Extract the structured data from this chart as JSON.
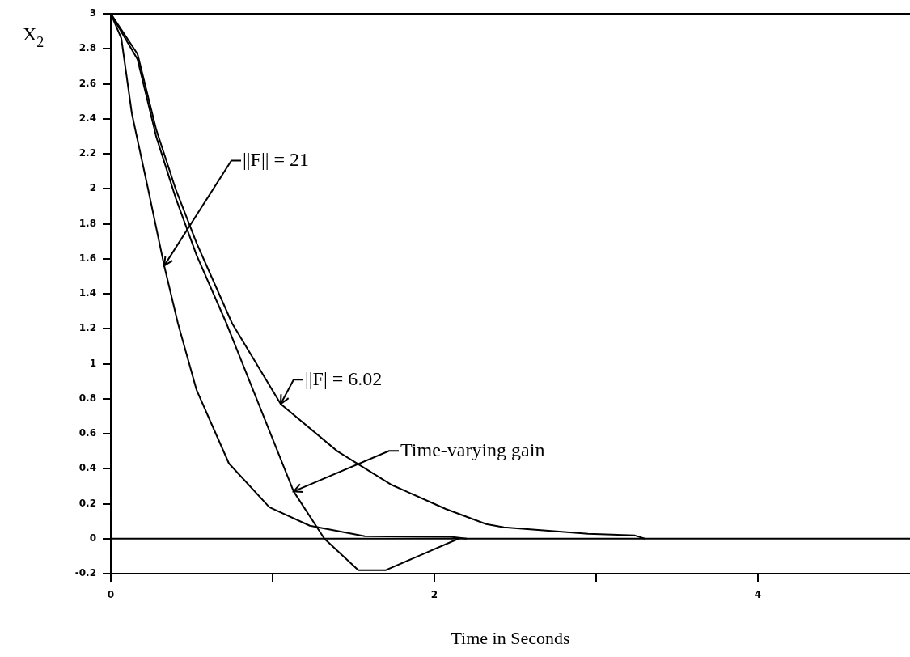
{
  "chart_data": {
    "type": "line",
    "xlabel": "Time in Seconds",
    "ylabel": "X$_{2}$",
    "xlim": [
      0,
      4.94
    ],
    "xticks": [
      0,
      {
        "value": 1,
        "label": null
      },
      2,
      {
        "value": 3,
        "label": null
      },
      4
    ],
    "ylim": [
      -0.2,
      3
    ],
    "yticks": [
      3,
      2.8,
      2.6,
      2.4,
      2.2,
      2,
      1.8,
      1.6,
      1.4,
      1.2,
      1,
      0.8,
      0.6,
      0.4,
      0.2,
      0,
      -0.2
    ],
    "grid": false,
    "legend": false,
    "marker": "none",
    "line_style": "solid",
    "ref_lines": [
      {
        "axis": "y",
        "value": 0,
        "color": "#000000"
      }
    ],
    "series": [
      {
        "color": "#000000",
        "x": [
          0,
          0.065,
          0.13,
          0.23,
          0.33,
          0.415,
          0.53,
          0.73,
          0.98,
          1.23,
          1.57,
          2.1,
          2.2
        ],
        "values": [
          3,
          2.86,
          2.43,
          2,
          1.56,
          1.23,
          0.85,
          0.43,
          0.18,
          0.074,
          0.014,
          0.01,
          0
        ]
      },
      {
        "color": "#000000",
        "x": [
          0,
          0.165,
          0.28,
          0.4,
          0.53,
          0.75,
          1.05,
          1.4,
          1.73,
          2.07,
          2.32,
          2.43,
          2.95,
          3.24,
          3.3
        ],
        "values": [
          3,
          2.77,
          2.34,
          2,
          1.69,
          1.23,
          0.77,
          0.5,
          0.31,
          0.17,
          0.083,
          0.065,
          0.028,
          0.018,
          0
        ]
      },
      {
        "color": "#000000",
        "x": [
          0,
          0.165,
          0.28,
          0.4,
          0.53,
          0.715,
          1.13,
          1.32,
          1.53,
          1.7,
          2.15
        ],
        "values": [
          3,
          2.74,
          2.3,
          1.95,
          1.62,
          1.23,
          0.27,
          0,
          -0.18,
          -0.18,
          0
        ]
      }
    ],
    "annotations": [
      {
        "text": "||F|| = 21",
        "x": 0.33,
        "y": 1.56
      },
      {
        "text": "||F| = 6.02",
        "x": 1.05,
        "y": 0.77
      },
      {
        "text": "Time-varying gain",
        "x": 1.13,
        "y": 0.27
      }
    ]
  }
}
